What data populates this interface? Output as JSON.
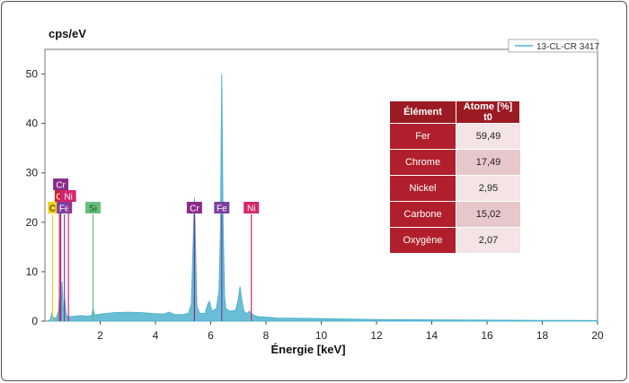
{
  "chart_data": {
    "type": "line",
    "ylabel": "cps/eV",
    "xlabel": "Énergie [keV]",
    "xlim": [
      0,
      20
    ],
    "ylim": [
      0,
      55
    ],
    "x_ticks": [
      2,
      4,
      6,
      8,
      10,
      12,
      14,
      16,
      18,
      20
    ],
    "y_ticks": [
      0,
      10,
      20,
      30,
      40,
      50
    ],
    "grid": false,
    "legend_position": "top-right",
    "series": [
      {
        "name": "13-CL-CR 3417",
        "color": "#4fb3cf",
        "x": [
          0.1,
          0.2,
          0.26,
          0.3,
          0.35,
          0.4,
          0.45,
          0.5,
          0.52,
          0.55,
          0.58,
          0.62,
          0.66,
          0.7,
          0.72,
          0.76,
          0.8,
          0.85,
          0.95,
          1.1,
          1.3,
          1.5,
          1.7,
          1.74,
          1.8,
          2.0,
          2.5,
          3.0,
          3.5,
          4.0,
          4.3,
          4.5,
          4.7,
          5.0,
          5.2,
          5.3,
          5.41,
          5.5,
          5.6,
          5.8,
          5.9,
          5.95,
          6.05,
          6.2,
          6.3,
          6.35,
          6.4,
          6.45,
          6.5,
          6.55,
          6.7,
          6.9,
          7.0,
          7.06,
          7.12,
          7.2,
          7.3,
          7.4,
          7.47,
          7.55,
          7.7,
          8.0,
          8.26,
          8.4,
          9.0,
          10.0,
          11.0,
          12.0,
          14.0,
          16.0,
          18.0,
          20.0
        ],
        "values": [
          0.0,
          0.3,
          1.8,
          0.8,
          0.6,
          0.7,
          1.2,
          2.2,
          5.0,
          1.5,
          1.4,
          8.0,
          3.0,
          1.5,
          4.5,
          1.5,
          1.0,
          0.9,
          0.9,
          1.0,
          1.1,
          1.0,
          1.1,
          2.6,
          1.2,
          1.4,
          1.7,
          1.8,
          1.7,
          1.5,
          1.4,
          1.8,
          1.3,
          1.3,
          1.6,
          3.5,
          25.0,
          3.0,
          1.5,
          1.6,
          3.5,
          4.0,
          2.0,
          2.5,
          6.0,
          18.0,
          50.0,
          20.0,
          5.0,
          2.5,
          2.0,
          2.2,
          4.5,
          7.0,
          4.5,
          2.0,
          1.5,
          2.0,
          1.6,
          1.2,
          0.9,
          0.8,
          0.7,
          0.6,
          0.6,
          0.5,
          0.4,
          0.3,
          0.25,
          0.2,
          0.15,
          0.1
        ]
      }
    ],
    "element_markers": [
      {
        "label": "C",
        "energy": 0.277,
        "color": "#f0d020",
        "text_color": "#222222",
        "row": 0
      },
      {
        "label": "O",
        "energy": 0.525,
        "color": "#c9262c",
        "text_color": "#ffffff",
        "row": 1
      },
      {
        "label": "Cr",
        "energy": 0.573,
        "color": "#8b2a8b",
        "text_color": "#ffffff",
        "row": 2
      },
      {
        "label": "Fe",
        "energy": 0.705,
        "color": "#7a3fa0",
        "text_color": "#ffffff",
        "row": 0
      },
      {
        "label": "Ni",
        "energy": 0.851,
        "color": "#d6256c",
        "text_color": "#ffffff",
        "row": 1
      },
      {
        "label": "Si",
        "energy": 1.74,
        "color": "#66c07a",
        "text_color": "#1a4d26",
        "row": 0
      },
      {
        "label": "Cr",
        "energy": 5.411,
        "color": "#8b2a8b",
        "text_color": "#ffffff",
        "row": 0
      },
      {
        "label": "Fe",
        "energy": 6.4,
        "color": "#7a3fa0",
        "text_color": "#ffffff",
        "row": 0
      },
      {
        "label": "Ni",
        "energy": 7.47,
        "color": "#d6256c",
        "text_color": "#ffffff",
        "row": 0
      }
    ]
  },
  "table": {
    "header_element": "Élément",
    "header_atom": "Atome [%] t0",
    "rows": [
      {
        "element": "Fer",
        "value": "59,49"
      },
      {
        "element": "Chrome",
        "value": "17,49"
      },
      {
        "element": "Nickel",
        "value": "2,95"
      },
      {
        "element": "Carbone",
        "value": "15,02"
      },
      {
        "element": "Oxygène",
        "value": "2,07"
      }
    ]
  },
  "colors": {
    "table_header": "#9b1b23",
    "table_element_cell": "#b01f2b"
  }
}
